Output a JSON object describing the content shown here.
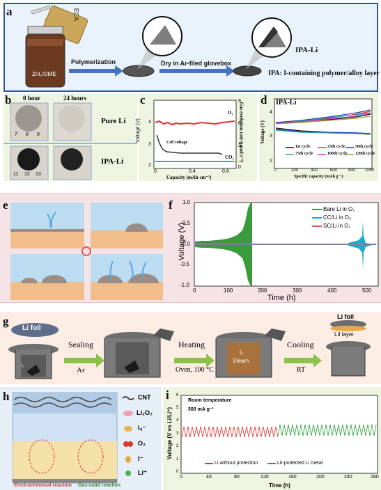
{
  "panels": {
    "a": {
      "label": "a",
      "vial": "ECA",
      "jar": "ZnI₂/DME",
      "step1": "Polymerization",
      "step2": "Dry in Ar-filed glovebox",
      "product": "IPA-Li",
      "note": "IPA: I-containing polymer/alloy layer"
    },
    "b": {
      "label": "b",
      "col1": "0 hour",
      "col2": "24 hours",
      "row1": "Pure Li",
      "row2": "IPA-Li",
      "ruler": [
        "7",
        "8",
        "9",
        "11",
        "12",
        "13"
      ]
    },
    "c": {
      "label": "c",
      "ylabel_left": "Voltage (V)",
      "ylabel_right": "Gas evolution rate (μmol s⁻¹)",
      "xlabel": "Capacity (mAh cm⁻²)",
      "o2": "O₂",
      "co2": "CO₂",
      "cell_voltage": "Cell voltage",
      "yticks_left": [
        "2",
        "3",
        "4"
      ],
      "yticks_right": [
        "0",
        "3",
        "6",
        "9"
      ],
      "xticks": [
        "0",
        "0.4",
        "0.8"
      ]
    },
    "d": {
      "label": "d",
      "title": "IPA-Li",
      "ylabel": "Voltage (V)",
      "xlabel": "Specific capacity (mAh g⁻¹)",
      "xticks": [
        "0",
        "200",
        "400",
        "600",
        "800",
        "1000"
      ],
      "yticks": [
        "2",
        "3",
        "4"
      ],
      "legend": [
        "1st cycle",
        "25th cycle",
        "50th cycle",
        "75th cycle",
        "100th cycle",
        "120th cycle"
      ]
    },
    "e": {
      "label": "e"
    },
    "f": {
      "label": "f",
      "ylabel": "Voltage (V)",
      "xlabel": "Time (h)",
      "yticks": [
        "-1.0",
        "-0.5",
        "0.0",
        "0.5",
        "1.0"
      ],
      "xticks": [
        "0",
        "100",
        "200",
        "300",
        "400",
        "500"
      ],
      "legend": [
        "Bare Li in O₂",
        "CC/Li in O₂",
        "SC/Li in O₂"
      ]
    },
    "g": {
      "label": "g",
      "li_foil": "Li foil",
      "li_foil2": "Li foil",
      "sealing": "Sealing",
      "ar": "Ar",
      "heating": "Heating",
      "oven": "Oven, 100 °C",
      "cooling": "Cooling",
      "rt": "RT",
      "lil_layer": "LiI layer",
      "i2": "I₂",
      "steam": "Steam",
      "i2_small": "I₂"
    },
    "h": {
      "label": "h",
      "legend": [
        "CNT",
        "Li₂O₂",
        "I₃⁻",
        "O₂",
        "I⁻",
        "Li⁺"
      ],
      "bottom_left": "Electrochemical reaction",
      "bottom_right": "Gas-solid reaction"
    },
    "i": {
      "label": "i",
      "ylabel": "Voltage (V vs Li/Li⁺)",
      "xlabel": "Time (h)",
      "note1": "Room temperature",
      "note2": "500 mA g⁻¹",
      "xticks": [
        "0",
        "40",
        "80",
        "120",
        "160",
        "200",
        "240",
        "280"
      ],
      "yticks": [
        "0",
        "1",
        "2",
        "3",
        "4",
        "5",
        "6"
      ],
      "legend": [
        "Li without protection",
        "LiI-protected Li metal"
      ]
    }
  },
  "colors": {
    "blue_panel": "#e9f2fb",
    "blue_border": "#2f5597",
    "green_panel": "#eef4e0",
    "pink_panel": "#f6e3e6",
    "pink_border": "#e8b9be",
    "peach_panel": "#fbece4",
    "arrow_blue": "#4472c4",
    "arrow_green": "#70ad47",
    "bare_li": "#3a9b3a",
    "cc_li": "#20a8d8",
    "sc_li": "#e05a5a",
    "red": "#e8302f",
    "green": "#2f9e3a"
  }
}
